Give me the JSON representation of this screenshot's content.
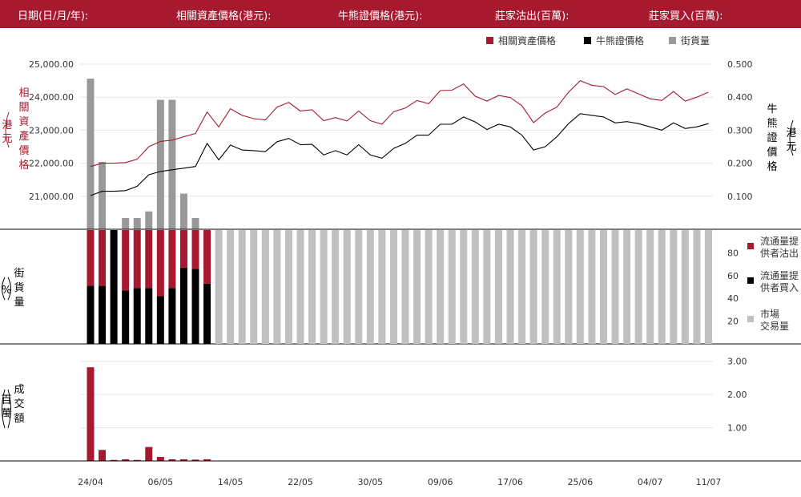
{
  "header": {
    "date_label": "日期(日/月/年):",
    "asset_label": "相關資產價格(港元):",
    "cbbc_label": "牛熊證價格(港元):",
    "sell_label": "莊家沽出(百萬):",
    "buy_label": "莊家買入(百萬):"
  },
  "legend_top": [
    "相關資產價格",
    "牛熊證價格",
    "街貨量"
  ],
  "legend_mid": [
    "流通量提",
    "供者沽出",
    "流通量提",
    "供者買入",
    "市場",
    "交易量"
  ],
  "colors": {
    "asset": "#a6192e",
    "cbbc": "#000000",
    "outstanding": "#999999",
    "market": "#c0c0c0",
    "header": "#a6192e"
  },
  "chart_data": [
    {
      "type": "line",
      "title": "",
      "left_axis": {
        "label_chars": [
          "相",
          "關",
          "資",
          "產",
          "價",
          "格"
        ],
        "paren_chars": [
          "港",
          "元"
        ],
        "ticks": [
          "21,000.00",
          "22,000.00",
          "23,000.00",
          "24,000.00",
          "25,000.00"
        ],
        "range": [
          20000,
          25000
        ]
      },
      "right_axis": {
        "label_chars": [
          "牛",
          "熊",
          "證",
          "價",
          "格"
        ],
        "paren_chars": [
          "港",
          "元"
        ],
        "ticks": [
          "0.100",
          "0.200",
          "0.300",
          "0.400",
          "0.500"
        ],
        "range": [
          0,
          0.5
        ]
      },
      "series": [
        {
          "name": "相關資產價格",
          "axis": "left",
          "values": [
            21900,
            22000,
            22000,
            22020,
            22120,
            22500,
            22660,
            22700,
            22800,
            22900,
            23550,
            23100,
            23650,
            23450,
            23350,
            23310,
            23700,
            23840,
            23580,
            23620,
            23290,
            23380,
            23280,
            23580,
            23290,
            23180,
            23560,
            23670,
            23900,
            23800,
            24200,
            24210,
            24400,
            24030,
            23880,
            24050,
            23990,
            23740,
            23230,
            23520,
            23700,
            24150,
            24500,
            24360,
            24320,
            24080,
            24250,
            24100,
            23950,
            23900,
            24170,
            23880,
            24000,
            24150
          ]
        },
        {
          "name": "牛熊證價格",
          "axis": "right",
          "values": [
            0.102,
            0.115,
            0.115,
            0.117,
            0.13,
            0.165,
            0.175,
            0.18,
            0.185,
            0.19,
            0.26,
            0.21,
            0.255,
            0.24,
            0.238,
            0.235,
            0.265,
            0.275,
            0.256,
            0.257,
            0.225,
            0.238,
            0.225,
            0.256,
            0.225,
            0.215,
            0.245,
            0.26,
            0.285,
            0.285,
            0.318,
            0.318,
            0.34,
            0.325,
            0.302,
            0.318,
            0.31,
            0.285,
            0.24,
            0.25,
            0.28,
            0.32,
            0.35,
            0.345,
            0.34,
            0.322,
            0.326,
            0.32,
            0.31,
            0.3,
            0.322,
            0.305,
            0.31,
            0.32
          ]
        }
      ]
    },
    {
      "type": "bar",
      "title": "",
      "name": "街貨量",
      "values": [
        22800,
        10200,
        0,
        1700,
        1700,
        2700,
        19600,
        19600,
        5400,
        1700
      ]
    },
    {
      "type": "bar",
      "title": "",
      "axis_label_chars": [
        "街",
        "貨",
        "量"
      ],
      "paren_chars": [
        "%"
      ],
      "ticks": [
        "20",
        "40",
        "60",
        "80"
      ],
      "range": [
        0,
        100
      ],
      "series": [
        {
          "name": "流通量提供者沽出",
          "values": [
            49,
            49,
            0,
            53,
            51,
            51,
            58,
            51,
            33,
            34,
            47
          ]
        },
        {
          "name": "流通量提供者買入",
          "values": [
            51,
            51,
            100,
            47,
            49,
            49,
            42,
            49,
            67,
            66,
            53
          ]
        },
        {
          "name": "市場交易量",
          "values": [
            0,
            0,
            0,
            0,
            0,
            0,
            0,
            0,
            0,
            0,
            0,
            100,
            100,
            100,
            100,
            100,
            100,
            100,
            100,
            100,
            100,
            100,
            100,
            100,
            100,
            100,
            100,
            100,
            100,
            100,
            100,
            100,
            100,
            100,
            100,
            100,
            100,
            100,
            100,
            100,
            100,
            100,
            100,
            100,
            100,
            100,
            100,
            100,
            100,
            100,
            100,
            100,
            100,
            100
          ]
        }
      ]
    },
    {
      "type": "bar",
      "title": "",
      "axis_label_chars": [
        "成",
        "交",
        "額"
      ],
      "paren_chars": [
        "百",
        "萬"
      ],
      "ticks": [
        "1.00",
        "2.00",
        "3.00"
      ],
      "range": [
        0,
        3.5
      ],
      "values": [
        2.82,
        0.33,
        0.03,
        0.05,
        0.03,
        0.42,
        0.12,
        0.05,
        0.05,
        0.04,
        0.05
      ]
    }
  ],
  "x_axis": {
    "ticks": [
      "24/04",
      "06/05",
      "14/05",
      "22/05",
      "30/05",
      "09/06",
      "17/06",
      "25/06",
      "04/07",
      "11/07"
    ],
    "tick_indices": [
      0,
      6,
      12,
      18,
      24,
      30,
      36,
      42,
      48,
      53
    ]
  }
}
